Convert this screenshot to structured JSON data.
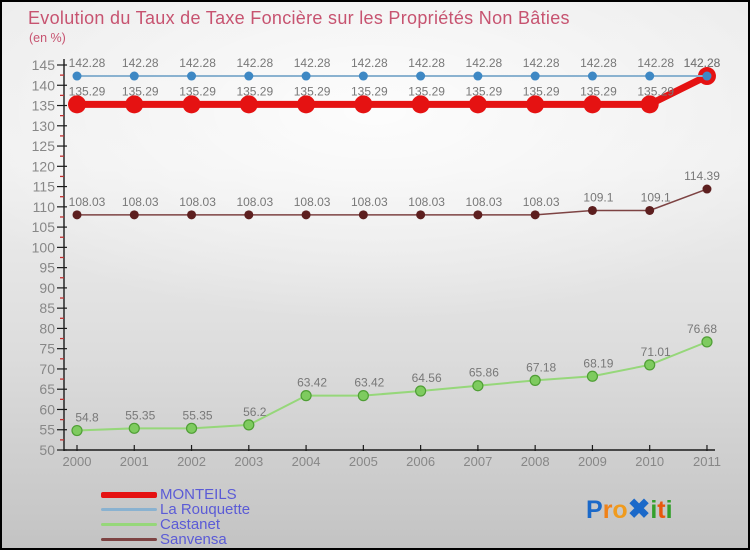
{
  "title": "Evolution du Taux de Taxe Foncière sur les Propriétés Non Bâties",
  "subtitle": "(en %)",
  "axis": {
    "line_color": "#1a1a1a",
    "tick_label_color": "#878787",
    "minor_tick_color": "#c03030",
    "value_label_color": "#787878"
  },
  "chart_data": {
    "type": "line",
    "title": "Evolution du Taux de Taxe Foncière sur les Propriétés Non Bâties",
    "unit_label": "(en %)",
    "x": [
      2000,
      2001,
      2002,
      2003,
      2004,
      2005,
      2006,
      2007,
      2008,
      2009,
      2010,
      2011
    ],
    "series": [
      {
        "name": "MONTEILS",
        "color": "#e51212",
        "dot_color": "#e51212",
        "dot_stroke": "none",
        "line_width": 7,
        "dot_radius": 9,
        "values": [
          135.29,
          135.29,
          135.29,
          135.29,
          135.29,
          135.29,
          135.29,
          135.29,
          135.29,
          135.29,
          135.29,
          142.28
        ]
      },
      {
        "name": "La Rouquette",
        "color": "#8ab2d0",
        "dot_color": "#3e88c4",
        "dot_stroke": "none",
        "line_width": 2,
        "dot_radius": 4.5,
        "values": [
          142.28,
          142.28,
          142.28,
          142.28,
          142.28,
          142.28,
          142.28,
          142.28,
          142.28,
          142.28,
          142.28,
          142.28
        ]
      },
      {
        "name": "Castanet",
        "color": "#96d77a",
        "dot_color": "#7ecb5f",
        "dot_stroke": "#4f9e35",
        "line_width": 2,
        "dot_radius": 5,
        "values": [
          54.8,
          55.35,
          55.35,
          56.2,
          63.42,
          63.42,
          64.56,
          65.86,
          67.18,
          68.19,
          71.01,
          76.68
        ]
      },
      {
        "name": "Sanvensa",
        "color": "#7d4343",
        "dot_color": "#5d1f1f",
        "dot_stroke": "none",
        "line_width": 1.5,
        "dot_radius": 4.5,
        "values": [
          108.03,
          108.03,
          108.03,
          108.03,
          108.03,
          108.03,
          108.03,
          108.03,
          108.03,
          109.1,
          109.1,
          114.39
        ]
      }
    ],
    "ylim": [
      50,
      145
    ],
    "ytick_major": 5,
    "ytick_minor": 2.5,
    "grid": false,
    "legend_position": "bottom-left"
  },
  "legend": [
    {
      "label": "MONTEILS",
      "color": "#e51212",
      "thickness": 6
    },
    {
      "label": "La Rouquette",
      "color": "#8ab2d0",
      "thickness": 3
    },
    {
      "label": "Castanet",
      "color": "#96d77a",
      "thickness": 3
    },
    {
      "label": "Sanvensa",
      "color": "#7d4343",
      "thickness": 3
    }
  ],
  "logo": {
    "text": "Proxiti",
    "letters": [
      {
        "ch": "P",
        "color": "#1b69c9",
        "big": false
      },
      {
        "ch": "r",
        "color": "#f08218",
        "big": false
      },
      {
        "ch": "o",
        "color": "#f09b1e",
        "big": false
      },
      {
        "ch": "✖",
        "color": "#1b69c9",
        "big": true
      },
      {
        "ch": "i",
        "color": "#33a02c",
        "big": false
      },
      {
        "ch": "t",
        "color": "#e8590c",
        "big": false
      },
      {
        "ch": "i",
        "color": "#33a02c",
        "big": false
      }
    ]
  }
}
